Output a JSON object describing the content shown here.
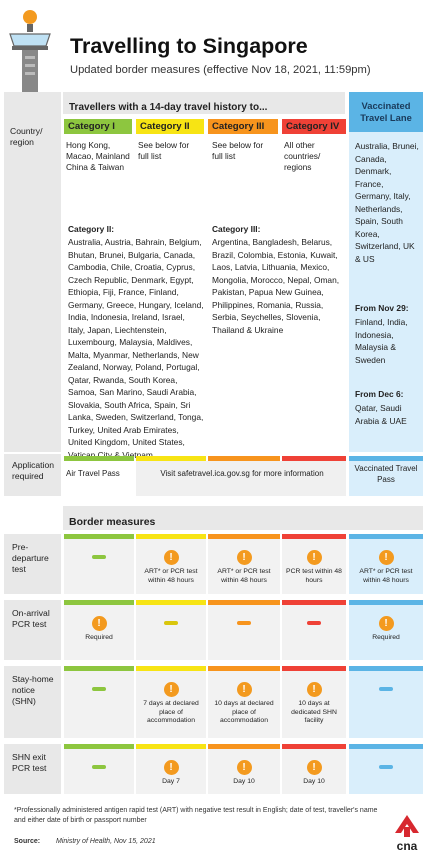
{
  "header": {
    "title": "Travelling to Singapore",
    "subtitle": "Updated border measures (effective Nov 18, 2021, 11:59pm)"
  },
  "table1": {
    "history_header": "Travellers with a 14-day travel history to...",
    "vtl_header": "Vaccinated Travel Lane",
    "row_label": "Country/ region",
    "categories": [
      {
        "name": "Category I",
        "color": "#8dc63f",
        "text": "Hong Kong, Macao, Mainland China & Taiwan"
      },
      {
        "name": "Category II",
        "color": "#f7e414",
        "text": "See below for full list"
      },
      {
        "name": "Category III",
        "color": "#f7941d",
        "text": "See below for full list"
      },
      {
        "name": "Category IV",
        "color": "#ef4136",
        "text": "All other countries/ regions"
      }
    ],
    "cat2_title": "Category II:",
    "cat2_list": "Australia, Austria, Bahrain, Belgium, Bhutan, Brunei, Bulgaria, Canada, Cambodia, Chile, Croatia, Cyprus, Czech Republic, Denmark, Egypt, Ethiopia, Fiji, France, Finland, Germany, Greece, Hungary, Iceland, India, Indonesia, Ireland, Israel, Italy, Japan, Liechtenstein, Luxembourg, Malaysia, Maldives, Malta, Myanmar, Netherlands, New Zealand, Norway, Poland, Portugal, Qatar, Rwanda, South Korea, Samoa, San Marino, Saudi Arabia, Slovakia, South Africa, Spain, Sri Lanka, Sweden, Switzerland, Tonga, Turkey, United Arab Emirates, United Kingdom, United States, Vatican City & Vietnam",
    "cat3_title": "Category III:",
    "cat3_list": "Argentina, Bangladesh, Belarus, Brazil, Colombia, Estonia, Kuwait, Laos, Latvia, Lithuania, Mexico, Mongolia, Morocco, Nepal, Oman, Pakistan, Papua New Guinea, Philippines, Romania, Russia, Serbia, Seychelles, Slovenia, Thailand & Ukraine",
    "vtl_countries": "Australia, Brunei, Canada, Denmark, France, Germany, Italy, Netherlands, Spain, South Korea, Switzerland, UK & US",
    "vtl_nov29_title": "From Nov 29:",
    "vtl_nov29": "Finland, India, Indonesia, Malaysia & Sweden",
    "vtl_dec6_title": "From Dec 6:",
    "vtl_dec6": "Qatar, Saudi Arabia & UAE",
    "app_label": "Application required",
    "app_cat1": "Air Travel Pass",
    "app_other": "Visit safetravel.ica.gov.sg for more information",
    "app_vtl": "Vaccinated Travel Pass"
  },
  "border": {
    "title": "Border measures",
    "rows": [
      {
        "label": "Pre-departure test",
        "cells": [
          "",
          "ART* or PCR test within 48 hours",
          "ART* or PCR test within 48 hours",
          "PCR test within 48 hours",
          "ART* or PCR test within 48 hours"
        ]
      },
      {
        "label": "On-arrival PCR test",
        "cells": [
          "Required",
          "",
          "",
          "",
          "Required"
        ]
      },
      {
        "label": "Stay-home notice (SHN)",
        "cells": [
          "",
          "7 days at declared place of accommodation",
          "10 days at declared place of accommodation",
          "10 days at dedicated SHN facility",
          ""
        ]
      },
      {
        "label": "SHN exit PCR test",
        "cells": [
          "",
          "Day 7",
          "Day 10",
          "Day 10",
          ""
        ]
      }
    ],
    "colors": {
      "cat1": "#8dc63f",
      "cat2": "#f7e414",
      "cat3": "#f7941d",
      "cat4": "#ef4136",
      "vtl": "#5bb4e5"
    }
  },
  "footnote": "*Professionally administered antigen rapid test (ART) with negative test result in English; date of test, traveller's name and either date of birth or passport number",
  "source_label": "Source:",
  "source": "Ministry of Health, Nov 15, 2021",
  "logo_text": "cna"
}
